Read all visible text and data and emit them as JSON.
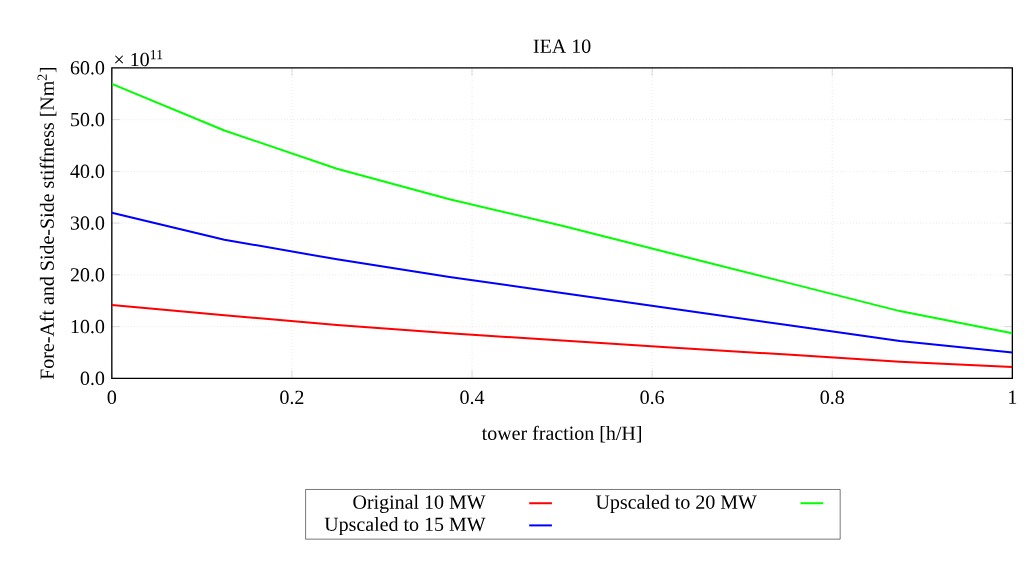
{
  "chart_data": {
    "type": "line",
    "title": "IEA 10",
    "xlabel": "tower fraction [h/H]",
    "ylabel": "Fore-Aft and Side-Side stiffness [Nm$^{2}$]",
    "annotations": [
      "× 10$^{11}$"
    ],
    "x": [
      0,
      0.125,
      0.25,
      0.375,
      0.5,
      0.625,
      0.75,
      0.875,
      1
    ],
    "series": [
      {
        "name": "Original 10 MW",
        "color": "#ff0000",
        "values": [
          14.2,
          12.2,
          10.3,
          8.7,
          7.3,
          5.9,
          4.6,
          3.2,
          2.2
        ]
      },
      {
        "name": "Upscaled to 20 MW",
        "color": "#00ff00",
        "values": [
          56.9,
          47.9,
          40.5,
          34.6,
          29.5,
          24.0,
          18.5,
          13.0,
          8.7
        ]
      },
      {
        "name": "Upscaled to 15 MW",
        "color": "#0000ff",
        "values": [
          32.0,
          26.8,
          23.0,
          19.6,
          16.5,
          13.4,
          10.3,
          7.2,
          5.0
        ]
      }
    ],
    "xlim": [
      0,
      1
    ],
    "ylim": [
      0,
      60
    ],
    "xticks": [
      0,
      0.2,
      0.4,
      0.6,
      0.8,
      1
    ],
    "yticks": [
      {
        "value": 0,
        "label": "0.0"
      },
      {
        "value": 10,
        "label": "10.0"
      },
      {
        "value": 20,
        "label": "20.0"
      },
      {
        "value": 30,
        "label": "30.0"
      },
      {
        "value": 40,
        "label": "40.0"
      },
      {
        "value": 50,
        "label": "50.0"
      },
      {
        "value": 60,
        "label": "60.0"
      }
    ],
    "grid": true,
    "legend": "bottom",
    "marker": "none",
    "line_style": "solid"
  }
}
